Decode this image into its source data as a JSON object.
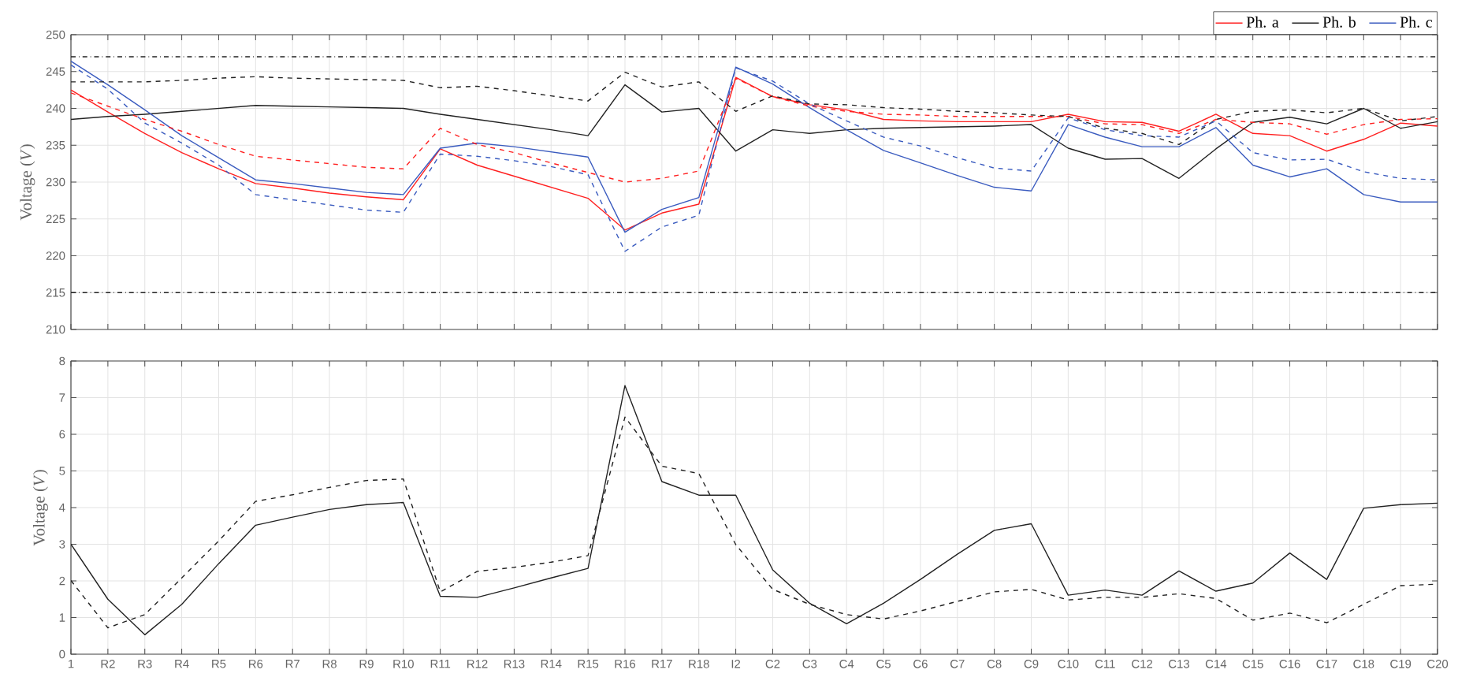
{
  "chart_data": [
    {
      "type": "line",
      "ylabel": "Voltage (*V*)",
      "ylim": [
        210,
        250
      ],
      "yticks": [
        210,
        215,
        220,
        225,
        230,
        235,
        240,
        245,
        250
      ],
      "grid": true,
      "legend": "top right",
      "tick_labels": "y",
      "categories": [
        null,
        null,
        null,
        null,
        null,
        null,
        null,
        null,
        null,
        null,
        null,
        null,
        null,
        null,
        null,
        null,
        null,
        null,
        null,
        null,
        null,
        null,
        null,
        null,
        null,
        null,
        null,
        null,
        null,
        null,
        null,
        null,
        null,
        null,
        null,
        null,
        null,
        null
      ],
      "ref_lines": [
        {
          "axis": "y",
          "value": 247,
          "color": "#222222",
          "line_style": "dashdot"
        },
        {
          "axis": "y",
          "value": 215,
          "color": "#222222",
          "line_style": "dashdot"
        }
      ],
      "series": [
        {
          "name": "Ph. a",
          "color": "#ff2020",
          "line_style": "solid",
          "values": [
            242.5,
            239.5,
            236.6,
            234.0,
            231.8,
            229.8,
            229.2,
            228.5,
            228.0,
            227.6,
            234.5,
            232.3,
            230.8,
            229.3,
            227.8,
            223.5,
            225.8,
            227.0,
            244.2,
            241.6,
            240.5,
            239.8,
            238.5,
            238.3,
            238.2,
            238.2,
            238.2,
            239.2,
            238.2,
            238.1,
            236.9,
            239.2,
            236.6,
            236.3,
            234.2,
            235.8,
            238.0,
            237.6
          ]
        },
        {
          "name": "Ph. b",
          "color": "#222222",
          "line_style": "solid",
          "values": [
            238.5,
            238.9,
            239.2,
            239.6,
            240.0,
            240.4,
            240.3,
            240.2,
            240.1,
            240.0,
            239.2,
            238.5,
            237.8,
            237.1,
            236.3,
            243.2,
            239.5,
            240.0,
            234.2,
            237.1,
            236.6,
            237.1,
            237.3,
            237.4,
            237.5,
            237.6,
            237.8,
            234.6,
            233.1,
            233.2,
            230.5,
            234.5,
            238.1,
            238.8,
            237.9,
            240.0,
            237.3,
            238.2
          ]
        },
        {
          "name": "Ph. c",
          "color": "#3a5bbf",
          "line_style": "solid",
          "values": [
            246.4,
            243.2,
            239.8,
            236.3,
            233.3,
            230.3,
            229.8,
            229.2,
            228.6,
            228.3,
            234.6,
            235.3,
            234.8,
            234.1,
            233.4,
            223.2,
            226.3,
            227.9,
            245.6,
            243.3,
            240.1,
            237.1,
            234.3,
            232.6,
            230.9,
            229.3,
            228.8,
            237.8,
            236.1,
            234.8,
            234.8,
            237.4,
            232.3,
            230.7,
            231.8,
            228.3,
            227.3,
            227.3
          ]
        },
        {
          "color": "#ff2020",
          "line_style": "dashed",
          "values": [
            242.1,
            240.3,
            238.5,
            236.9,
            235.1,
            233.5,
            233.0,
            232.5,
            232.0,
            231.8,
            237.3,
            235.1,
            234.0,
            232.6,
            231.3,
            230.0,
            230.5,
            231.5,
            244.1,
            241.6,
            240.3,
            239.6,
            239.2,
            239.1,
            238.9,
            238.9,
            238.9,
            238.9,
            237.9,
            237.8,
            236.6,
            238.5,
            238.1,
            237.9,
            236.5,
            237.8,
            238.5,
            238.6
          ]
        },
        {
          "color": "#222222",
          "line_style": "dashed",
          "values": [
            243.6,
            243.6,
            243.6,
            243.8,
            244.1,
            244.3,
            244.1,
            244.0,
            243.9,
            243.8,
            242.8,
            243.0,
            242.4,
            241.7,
            241.0,
            244.9,
            242.9,
            243.6,
            239.6,
            241.7,
            240.6,
            240.5,
            240.1,
            239.9,
            239.6,
            239.4,
            239.1,
            238.9,
            237.3,
            236.6,
            235.1,
            238.5,
            239.6,
            239.8,
            239.4,
            240.0,
            238.3,
            238.9
          ]
        },
        {
          "color": "#3a5bbf",
          "line_style": "dashed",
          "values": [
            245.9,
            242.6,
            238.0,
            235.3,
            232.3,
            228.3,
            227.6,
            226.9,
            226.2,
            225.9,
            233.8,
            233.5,
            232.9,
            232.1,
            231.0,
            220.6,
            223.9,
            225.5,
            245.5,
            243.7,
            240.6,
            238.3,
            236.1,
            234.9,
            233.3,
            231.9,
            231.5,
            238.7,
            237.1,
            236.3,
            236.1,
            238.3,
            234.0,
            233.0,
            233.1,
            231.4,
            230.5,
            230.3
          ]
        }
      ]
    },
    {
      "type": "line",
      "ylabel": "Voltage (*V*)",
      "ylim": [
        0,
        8
      ],
      "yticks": [
        0,
        1,
        2,
        3,
        4,
        5,
        6,
        7,
        8
      ],
      "grid": true,
      "categories": [
        "1",
        "R2",
        "R3",
        "R4",
        "R5",
        "R6",
        "R7",
        "R8",
        "R9",
        "R10",
        "R11",
        "R12",
        "R13",
        "R14",
        "R15",
        "R16",
        "R17",
        "R18",
        "I2",
        "C2",
        "C3",
        "C4",
        "C5",
        "C6",
        "C7",
        "C8",
        "C9",
        "C10",
        "C11",
        "C12",
        "C13",
        "C14",
        "C15",
        "C16",
        "C17",
        "C18",
        "C19",
        "C20"
      ],
      "series": [
        {
          "color": "#222222",
          "line_style": "solid",
          "values": [
            3.0,
            1.5,
            0.53,
            1.36,
            2.47,
            3.52,
            3.74,
            3.95,
            4.08,
            4.14,
            1.58,
            1.55,
            1.81,
            2.08,
            2.34,
            7.33,
            4.71,
            4.34,
            4.34,
            2.3,
            1.39,
            0.83,
            1.39,
            2.04,
            2.73,
            3.38,
            3.56,
            1.61,
            1.75,
            1.61,
            2.27,
            1.72,
            1.94,
            2.76,
            2.04,
            3.98,
            4.08,
            4.12
          ]
        },
        {
          "color": "#222222",
          "line_style": "dashed",
          "values": [
            2.01,
            0.72,
            1.08,
            2.08,
            3.09,
            4.17,
            4.35,
            4.55,
            4.74,
            4.78,
            1.7,
            2.26,
            2.37,
            2.51,
            2.69,
            6.47,
            5.13,
            4.93,
            2.99,
            1.77,
            1.36,
            1.08,
            0.96,
            1.18,
            1.44,
            1.7,
            1.77,
            1.48,
            1.55,
            1.55,
            1.65,
            1.52,
            0.93,
            1.12,
            0.86,
            1.36,
            1.87,
            1.91
          ]
        }
      ]
    }
  ]
}
